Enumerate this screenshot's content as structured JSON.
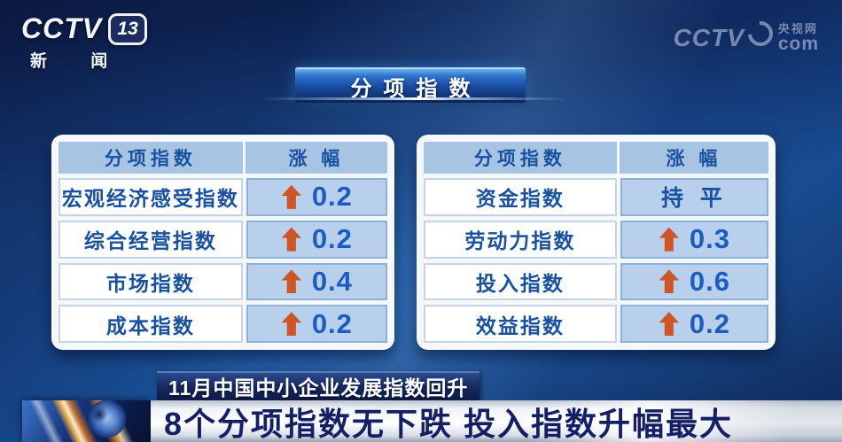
{
  "branding": {
    "channel_logo": {
      "wordmark": "CCTV",
      "number": "13",
      "subtitle": "新 闻"
    },
    "watermark": {
      "wordmark": "CCTV",
      "site_name": "央视网",
      "domain": "com"
    }
  },
  "title_banner": {
    "text": "分项指数"
  },
  "tables": [
    {
      "columns": [
        "分项指数",
        "涨 幅"
      ],
      "rows": [
        {
          "label": "宏观经济感受指数",
          "direction": "up",
          "value": "0.2"
        },
        {
          "label": "综合经营指数",
          "direction": "up",
          "value": "0.2"
        },
        {
          "label": "市场指数",
          "direction": "up",
          "value": "0.4"
        },
        {
          "label": "成本指数",
          "direction": "up",
          "value": "0.2"
        }
      ]
    },
    {
      "columns": [
        "分项指数",
        "涨 幅"
      ],
      "rows": [
        {
          "label": "资金指数",
          "direction": "flat",
          "value": "持 平"
        },
        {
          "label": "劳动力指数",
          "direction": "up",
          "value": "0.3"
        },
        {
          "label": "投入指数",
          "direction": "up",
          "value": "0.6"
        },
        {
          "label": "效益指数",
          "direction": "up",
          "value": "0.2"
        }
      ]
    }
  ],
  "lower_third": {
    "kicker": "11月中国中小企业发展指数回升",
    "headline": "8个分项指数无下跌 投入指数升幅最大"
  },
  "chart_data": [
    {
      "type": "table",
      "title": "分项指数",
      "columns": [
        "分项指数",
        "涨幅"
      ],
      "rows": [
        [
          "宏观经济感受指数",
          "+0.2"
        ],
        [
          "综合经营指数",
          "+0.2"
        ],
        [
          "市场指数",
          "+0.4"
        ],
        [
          "成本指数",
          "+0.2"
        ]
      ]
    },
    {
      "type": "table",
      "title": "分项指数",
      "columns": [
        "分项指数",
        "涨幅"
      ],
      "rows": [
        [
          "资金指数",
          "持平"
        ],
        [
          "劳动力指数",
          "+0.3"
        ],
        [
          "投入指数",
          "+0.6"
        ],
        [
          "效益指数",
          "+0.2"
        ]
      ]
    }
  ],
  "colors": {
    "arrow_up": "#cd5629",
    "index_label_text": "#17519f",
    "value_text": "#1a5cc2",
    "header_cell_bg": "#a7c4e3",
    "value_cell_bg": "#b9d0ec",
    "headline_text": "#141f66",
    "banner_blue": "#1a4ea6"
  }
}
